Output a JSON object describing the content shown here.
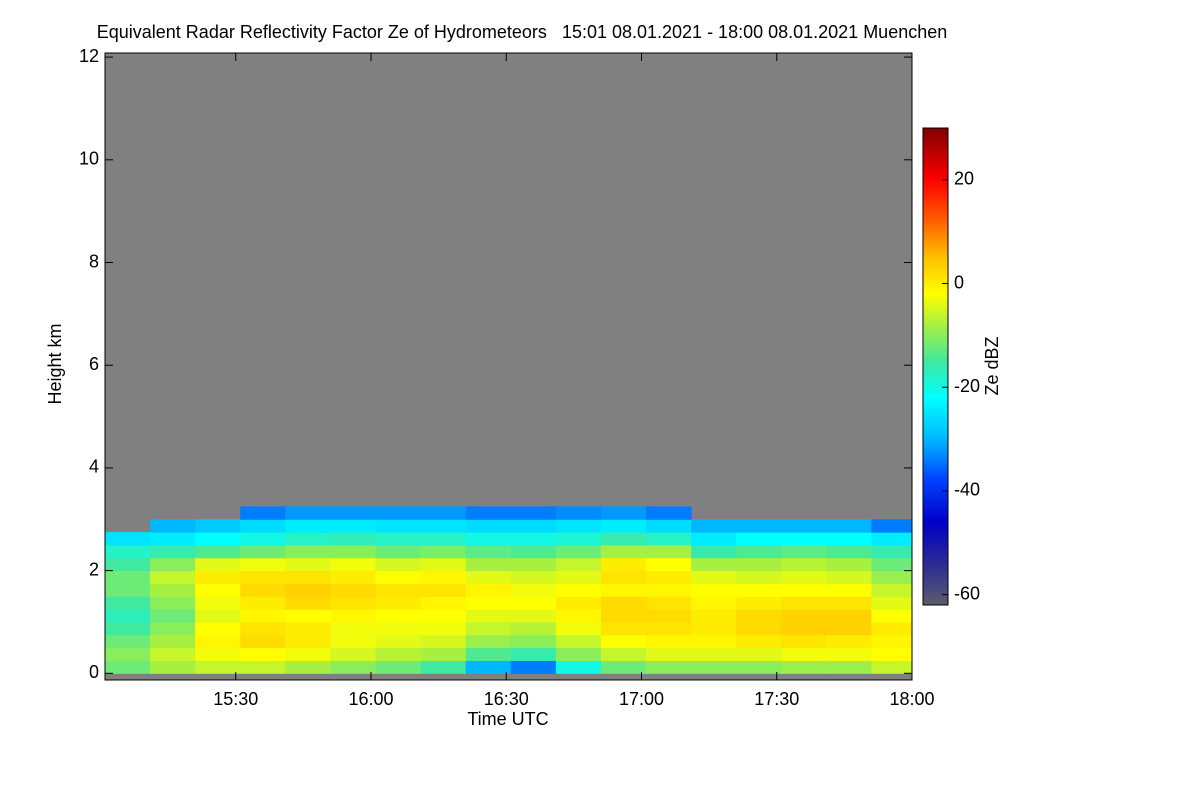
{
  "chart_data": {
    "type": "heatmap",
    "title": "Equivalent Radar Reflectivity Factor Ze of Hydrometeors   15:01 08.01.2021 - 18:00 08.01.2021 Muenchen",
    "xlabel": "Time UTC",
    "ylabel": "Height km",
    "colorbar_label": "Ze dBZ",
    "x": [
      901,
      911,
      921,
      931,
      941,
      951,
      961,
      971,
      981,
      991,
      1001,
      1011,
      1021,
      1031,
      1041,
      1051,
      1061,
      1071
    ],
    "y": [
      0,
      0.25,
      0.5,
      0.75,
      1,
      1.25,
      1.5,
      1.75,
      2,
      2.25,
      2.5,
      2.75,
      3
    ],
    "values": [
      [
        -12,
        -10,
        -12,
        -15,
        -17,
        -15,
        -12,
        -12,
        -15,
        -18,
        -25,
        null,
        null
      ],
      [
        -8,
        -6,
        -8,
        -10,
        -12,
        -10,
        -8,
        -6,
        -10,
        -16,
        -24,
        -30,
        null
      ],
      [
        -6,
        -3,
        -1,
        -2,
        -4,
        -3,
        -2,
        0,
        -4,
        -14,
        -22,
        -28,
        null
      ],
      [
        -6,
        -2,
        2,
        1,
        -1,
        0,
        2,
        1,
        -3,
        -12,
        -20,
        -26,
        -34
      ],
      [
        -8,
        -3,
        0,
        0,
        -2,
        2,
        3,
        1,
        -4,
        -10,
        -18,
        -24,
        -32
      ],
      [
        -10,
        -5,
        -3,
        -3,
        -1,
        1,
        2,
        0,
        -3,
        -10,
        -17,
        -24,
        -32
      ],
      [
        -12,
        -7,
        -4,
        -3,
        -2,
        0,
        1,
        -2,
        -5,
        -12,
        -18,
        -25,
        -32
      ],
      [
        -15,
        -8,
        -5,
        -3,
        -2,
        -1,
        1,
        -1,
        -4,
        -11,
        -18,
        -25,
        -32
      ],
      [
        -30,
        -14,
        -9,
        -6,
        -4,
        -2,
        -1,
        -4,
        -8,
        -13,
        -20,
        -26,
        -34
      ],
      [
        -34,
        -16,
        -10,
        -7,
        -4,
        -2,
        -3,
        -5,
        -8,
        -14,
        -20,
        -26,
        -34
      ],
      [
        -20,
        -10,
        -6,
        -3,
        -1,
        0,
        -2,
        -4,
        -6,
        -12,
        -19,
        -25,
        -33
      ],
      [
        -12,
        -6,
        -2,
        1,
        2,
        2,
        -1,
        1,
        0,
        -8,
        -16,
        -24,
        -32
      ],
      [
        -10,
        -4,
        -1,
        1,
        2,
        1,
        -1,
        0,
        -2,
        -8,
        -18,
        -26,
        -34
      ],
      [
        -10,
        -4,
        -1,
        0,
        0,
        -1,
        -2,
        -4,
        -8,
        -16,
        -24,
        -30,
        null
      ],
      [
        -10,
        -4,
        0,
        2,
        2,
        0,
        -2,
        -5,
        -8,
        -14,
        -22,
        -30,
        null
      ],
      [
        -9,
        -3,
        1,
        3,
        3,
        1,
        -2,
        -4,
        -7,
        -13,
        -22,
        -30,
        null
      ],
      [
        -9,
        -3,
        0,
        3,
        3,
        1,
        -2,
        -5,
        -8,
        -14,
        -22,
        -30,
        null
      ],
      [
        -6,
        -2,
        -1,
        0,
        -2,
        -4,
        -6,
        -9,
        -12,
        -16,
        -24,
        -34,
        null
      ]
    ],
    "cell_height": 0.25,
    "xlim": [
      901,
      1080
    ],
    "xticks": [
      {
        "value": 930,
        "label": "15:30"
      },
      {
        "value": 960,
        "label": "16:00"
      },
      {
        "value": 990,
        "label": "16:30"
      },
      {
        "value": 1020,
        "label": "17:00"
      },
      {
        "value": 1050,
        "label": "17:30"
      },
      {
        "value": 1080,
        "label": "18:00"
      }
    ],
    "ylim": [
      -0.13,
      12.08
    ],
    "yticks": [
      0,
      2,
      4,
      6,
      8,
      10,
      12
    ],
    "clim": [
      -62,
      30
    ],
    "cticks": [
      -60,
      -40,
      -20,
      0,
      20
    ],
    "background_color": "#808080",
    "colorscale": [
      [
        -62,
        "#5c5c6c"
      ],
      [
        -55,
        "#303090"
      ],
      [
        -46,
        "#0000c8"
      ],
      [
        -38,
        "#0040ff"
      ],
      [
        -30,
        "#00b8ff"
      ],
      [
        -22,
        "#00ffff"
      ],
      [
        -15,
        "#40e8a0"
      ],
      [
        -8,
        "#a8f040"
      ],
      [
        -2,
        "#ffff00"
      ],
      [
        5,
        "#ffc000"
      ],
      [
        12,
        "#ff6000"
      ],
      [
        20,
        "#ff0000"
      ],
      [
        30,
        "#800000"
      ]
    ]
  }
}
